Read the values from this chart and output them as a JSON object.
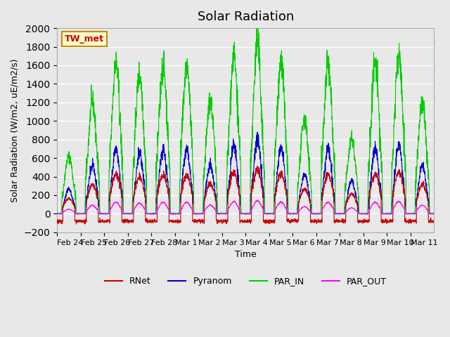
{
  "title": "Solar Radiation",
  "ylabel": "Solar Radiation (W/m2, uE/m2/s)",
  "xlabel": "Time",
  "ylim": [
    -200,
    2000
  ],
  "yticks": [
    -200,
    0,
    200,
    400,
    600,
    800,
    1000,
    1200,
    1400,
    1600,
    1800,
    2000
  ],
  "background_color": "#e8e8e8",
  "plot_bg_color": "#e8e8e8",
  "grid_color": "#ffffff",
  "colors": {
    "RNet": "#cc0000",
    "Pyranom": "#0000cc",
    "PAR_IN": "#00cc00",
    "PAR_OUT": "#ff00ff"
  },
  "station_label": "TW_met",
  "station_label_bg": "#ffffcc",
  "station_label_border": "#cc8800",
  "legend_labels": [
    "RNet",
    "Pyranom",
    "PAR_IN",
    "PAR_OUT"
  ],
  "x_tick_labels": [
    "Feb 24",
    "Feb 25",
    "Feb 26",
    "Feb 27",
    "Feb 28",
    "Mar 1",
    "Mar 2",
    "Mar 3",
    "Mar 4",
    "Mar 5",
    "Mar 6",
    "Mar 7",
    "Mar 8",
    "Mar 9",
    "Mar 10",
    "Mar 11"
  ],
  "x_tick_positions": [
    0,
    1,
    2,
    3,
    4,
    5,
    6,
    7,
    8,
    9,
    10,
    11,
    12,
    13,
    14,
    15
  ],
  "n_days": 16,
  "pts_per_day": 144,
  "par_in_peaks": [
    620,
    1200,
    1620,
    1500,
    1600,
    1600,
    1210,
    1690,
    1830,
    1630,
    1000,
    1600,
    820,
    1620,
    1720,
    1200
  ]
}
